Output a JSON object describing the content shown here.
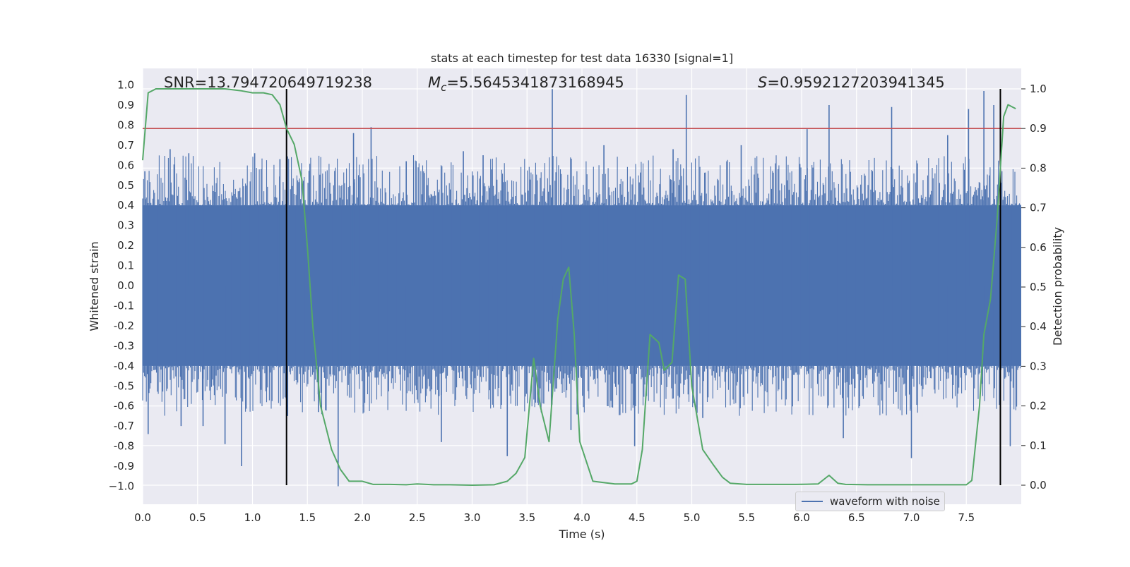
{
  "chart_data": {
    "type": "line",
    "title": "stats at each timestep for test data 16330 [signal=1]",
    "xlabel": "Time (s)",
    "ylabel": "Whitened strain",
    "ylabel_right": "Detection probability",
    "xlim": [
      0.0,
      8.0
    ],
    "ylim": [
      -1.1,
      1.1
    ],
    "ylim_right": [
      -0.05,
      1.05
    ],
    "x_ticks": [
      "0.0",
      "0.5",
      "1.0",
      "1.5",
      "2.0",
      "2.5",
      "3.0",
      "3.5",
      "4.0",
      "4.5",
      "5.0",
      "5.5",
      "6.0",
      "6.5",
      "7.0",
      "7.5"
    ],
    "y_ticks": [
      "1.0",
      "0.9",
      "0.8",
      "0.7",
      "0.6",
      "0.5",
      "0.4",
      "0.3",
      "0.2",
      "0.1",
      "0.0",
      "-0.1",
      "-0.2",
      "-0.3",
      "-0.4",
      "-0.5",
      "-0.6",
      "-0.7",
      "-0.8",
      "-0.9",
      "−1.0"
    ],
    "y_ticks_right": [
      "1.0",
      "0.9",
      "0.8",
      "0.7",
      "0.6",
      "0.5",
      "0.4",
      "0.3",
      "0.2",
      "0.1",
      "0.0"
    ],
    "annotations": {
      "snr": "SNR=13.794720649719238",
      "mc_symbol": "M",
      "mc_sub": "c",
      "mc_value": "=5.5645341873168945",
      "s_symbol": "S",
      "s_value": "=0.9592127203941345"
    },
    "threshold": 0.9,
    "vlines": [
      1.31,
      7.81
    ],
    "legend": [
      "waveform with noise"
    ],
    "legend_position": "lower right",
    "series": [
      {
        "name": "waveform with noise",
        "axis": "left",
        "color": "#4c72b0",
        "noise_envelope": {
          "core": 0.4,
          "typical_peak": 0.6,
          "max_positive": 0.98,
          "min_negative": -1.0
        },
        "spikes": [
          [
            0.02,
            0.57
          ],
          [
            0.05,
            -0.74
          ],
          [
            0.25,
            0.68
          ],
          [
            0.35,
            -0.7
          ],
          [
            0.42,
            0.66
          ],
          [
            0.55,
            -0.7
          ],
          [
            0.75,
            -0.79
          ],
          [
            0.9,
            -0.9
          ],
          [
            1.02,
            0.66
          ],
          [
            1.25,
            0.63
          ],
          [
            1.32,
            -0.65
          ],
          [
            1.6,
            -0.63
          ],
          [
            1.78,
            -1.0
          ],
          [
            1.92,
            0.76
          ],
          [
            2.08,
            0.79
          ],
          [
            2.4,
            0.62
          ],
          [
            2.72,
            -0.78
          ],
          [
            2.92,
            0.67
          ],
          [
            3.1,
            0.65
          ],
          [
            3.32,
            -0.85
          ],
          [
            3.73,
            0.98
          ],
          [
            3.9,
            -0.72
          ],
          [
            4.2,
            0.7
          ],
          [
            4.48,
            -0.8
          ],
          [
            4.83,
            0.68
          ],
          [
            4.95,
            0.95
          ],
          [
            5.1,
            -0.66
          ],
          [
            5.45,
            0.7
          ],
          [
            6.05,
            0.78
          ],
          [
            6.25,
            0.9
          ],
          [
            6.38,
            -0.76
          ],
          [
            6.82,
            0.89
          ],
          [
            7.0,
            -0.86
          ],
          [
            7.33,
            0.75
          ],
          [
            7.52,
            0.88
          ],
          [
            7.66,
            0.97
          ],
          [
            7.75,
            0.9
          ],
          [
            7.9,
            -0.8
          ]
        ]
      },
      {
        "name": "",
        "axis": "right",
        "color": "#55a868",
        "x": [
          0.0,
          0.05,
          0.12,
          0.25,
          0.5,
          0.75,
          0.9,
          1.0,
          1.1,
          1.18,
          1.25,
          1.31,
          1.38,
          1.45,
          1.5,
          1.55,
          1.62,
          1.72,
          1.8,
          1.88,
          2.0,
          2.1,
          2.25,
          2.4,
          2.5,
          2.65,
          2.8,
          3.0,
          3.2,
          3.32,
          3.4,
          3.48,
          3.56,
          3.62,
          3.7,
          3.78,
          3.83,
          3.88,
          3.93,
          3.98,
          4.1,
          4.3,
          4.45,
          4.5,
          4.55,
          4.62,
          4.7,
          4.75,
          4.82,
          4.88,
          4.94,
          5.0,
          5.1,
          5.2,
          5.28,
          5.35,
          5.5,
          5.75,
          5.95,
          6.15,
          6.25,
          6.33,
          6.4,
          6.6,
          6.9,
          7.2,
          7.5,
          7.55,
          7.62,
          7.66,
          7.72,
          7.78,
          7.84,
          7.88,
          7.95
        ],
        "y": [
          0.82,
          0.99,
          1.0,
          1.0,
          1.0,
          1.0,
          0.995,
          0.99,
          0.99,
          0.985,
          0.96,
          0.9,
          0.86,
          0.77,
          0.6,
          0.4,
          0.2,
          0.09,
          0.04,
          0.01,
          0.01,
          0.002,
          0.002,
          0.001,
          0.003,
          0.001,
          0.001,
          0.0,
          0.001,
          0.01,
          0.03,
          0.07,
          0.32,
          0.2,
          0.11,
          0.42,
          0.52,
          0.55,
          0.38,
          0.11,
          0.01,
          0.003,
          0.003,
          0.01,
          0.09,
          0.38,
          0.36,
          0.29,
          0.31,
          0.53,
          0.52,
          0.25,
          0.09,
          0.05,
          0.02,
          0.005,
          0.002,
          0.002,
          0.002,
          0.003,
          0.025,
          0.005,
          0.002,
          0.001,
          0.001,
          0.001,
          0.001,
          0.012,
          0.2,
          0.38,
          0.47,
          0.67,
          0.93,
          0.96,
          0.95
        ]
      }
    ]
  }
}
